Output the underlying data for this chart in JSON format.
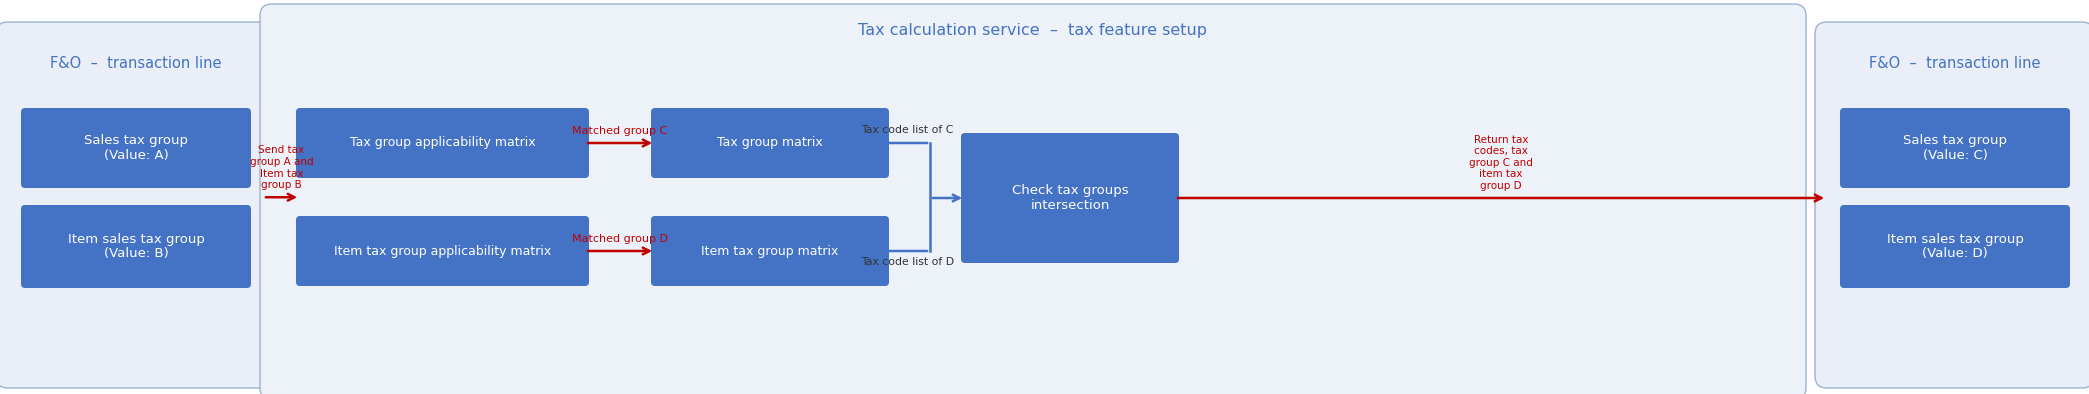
{
  "fig_width": 20.89,
  "fig_height": 3.94,
  "dpi": 100,
  "bg_color": "#ffffff",
  "panel_bg_left": "#eaeff7",
  "panel_bg_center": "#edf2f9",
  "panel_bg_right": "#eaeff7",
  "box_color": "#4472c4",
  "box_text_color": "#ffffff",
  "panel_border_color": "#9db3d0",
  "panel_title_color": "#4472c4",
  "arrow_red_color": "#c00000",
  "arrow_blue_color": "#4472c4",
  "text_dark_color": "#333333",
  "left_panel_title": "F&O  –  transaction line",
  "left_box1": "Sales tax group\n(Value: A)",
  "left_box2": "Item sales tax group\n(Value: B)",
  "center_panel_title": "Tax calculation service  –  tax feature setup",
  "box_tax_group_app": "Tax group applicability matrix",
  "box_tax_group_matrix": "Tax group matrix",
  "box_item_tax_group_app": "Item tax group applicability matrix",
  "box_item_tax_group_matrix": "Item tax group matrix",
  "box_check": "Check tax groups\nintersection",
  "right_panel_title": "F&O  –  transaction line",
  "right_box1": "Sales tax group\n(Value: C)",
  "right_box2": "Item sales tax group\n(Value: D)",
  "label_send": "Send tax\ngroup A and\nItem tax\ngroup B",
  "label_matched_c": "Matched group C",
  "label_matched_d": "Matched group D",
  "label_tax_code_c": "Tax code list of C",
  "label_tax_code_d": "Tax code list of D",
  "label_return": "Return tax\ncodes, tax\ngroup C and\nitem tax\ngroup D"
}
